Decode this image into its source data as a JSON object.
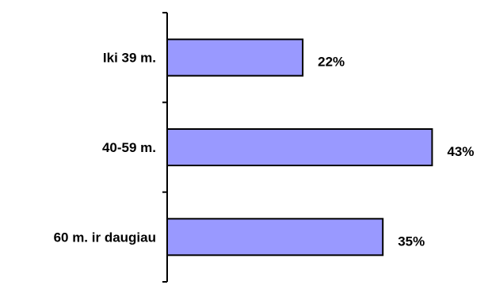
{
  "chart_data": {
    "type": "bar",
    "orientation": "horizontal",
    "categories": [
      "Iki 39 m.",
      "40-59 m.",
      "60 m. ir daugiau"
    ],
    "values": [
      22,
      43,
      35
    ],
    "value_labels": [
      "22%",
      "43%",
      "35%"
    ],
    "xlim": [
      0,
      45
    ],
    "grid": false,
    "legend": "none",
    "colors": {
      "bar_fill": "#9999ff",
      "bar_stroke": "#000000",
      "axis": "#000000"
    }
  }
}
